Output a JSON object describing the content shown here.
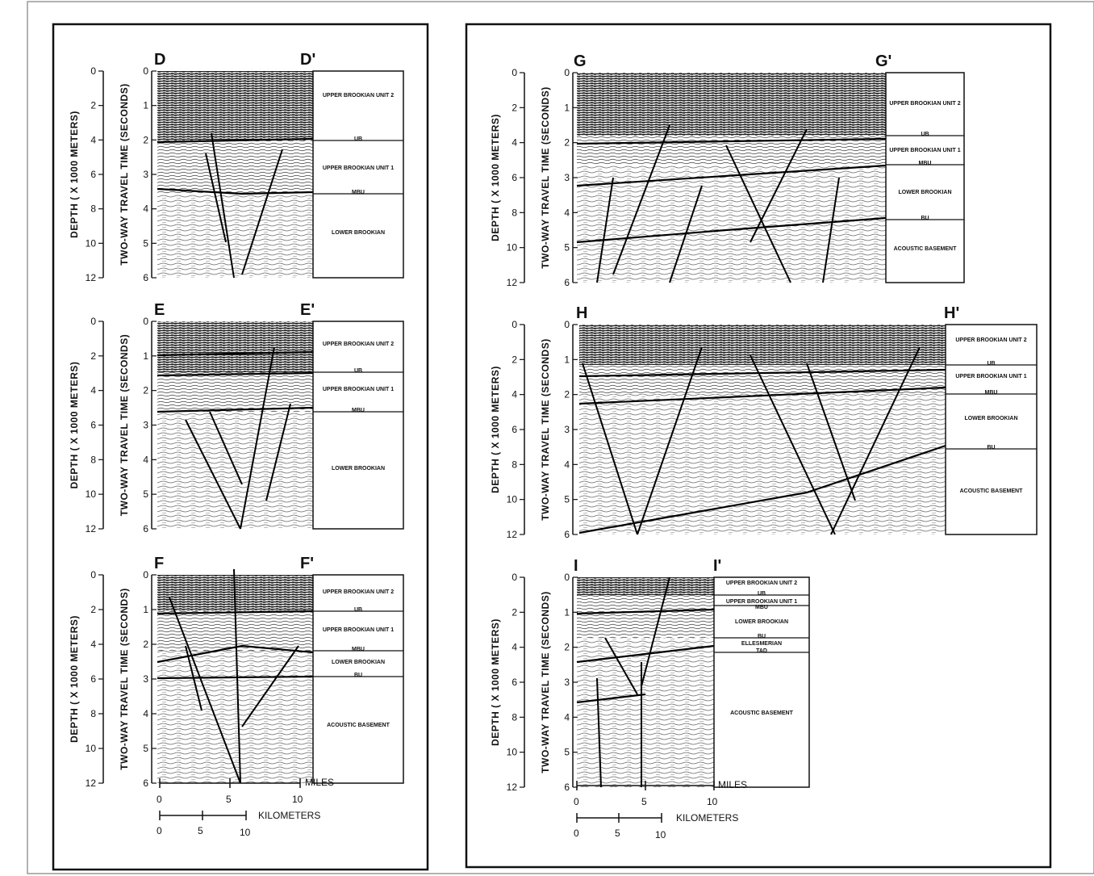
{
  "axis_labels": {
    "depth": "DEPTH ( X 1000 METERS)",
    "time": "TWO-WAY TRAVEL TIME (SECONDS)"
  },
  "depth_ticks": [
    "0",
    "2",
    "4",
    "6",
    "8",
    "10",
    "12"
  ],
  "time_ticks": [
    "0",
    "1",
    "2",
    "3",
    "4",
    "5",
    "6"
  ],
  "panels": [
    {
      "id": "D",
      "left": "D",
      "right": "D'",
      "units": [
        "UPPER BROOKIAN UNIT 2",
        "UB",
        "UPPER BROOKIAN UNIT 1",
        "MBU",
        "LOWER BROOKIAN"
      ]
    },
    {
      "id": "E",
      "left": "E",
      "right": "E'",
      "units": [
        "UPPER BROOKIAN UNIT 2",
        "UB",
        "UPPER BROOKIAN UNIT 1",
        "MBU",
        "LOWER BROOKIAN"
      ]
    },
    {
      "id": "F",
      "left": "F",
      "right": "F'",
      "units": [
        "UPPER BROOKIAN UNIT 2",
        "UB",
        "UPPER BROOKIAN UNIT 1",
        "MBU",
        "LOWER BROOKIAN",
        "BU",
        "ACOUSTIC BASEMENT"
      ]
    },
    {
      "id": "G",
      "left": "G",
      "right": "G'",
      "units": [
        "UPPER BROOKIAN UNIT 2",
        "UB",
        "UPPER BROOKIAN UNIT 1",
        "MBU",
        "LOWER BROOKIAN",
        "BU",
        "ACOUSTIC BASEMENT"
      ]
    },
    {
      "id": "H",
      "left": "H",
      "right": "H'",
      "units": [
        "UPPER BROOKIAN UNIT 2",
        "UB",
        "UPPER BROOKIAN UNIT 1",
        "MBU",
        "LOWER BROOKIAN",
        "BU",
        "ACOUSTIC BASEMENT"
      ]
    },
    {
      "id": "I",
      "left": "I",
      "right": "I'",
      "units": [
        "UPPER BROOKIAN UNIT 2",
        "UB",
        "UPPER BROOKIAN UNIT 1",
        "MBU",
        "LOWER BROOKIAN",
        "BU",
        "ELLESMERIAN",
        "TAD",
        "ACOUSTIC BASEMENT"
      ]
    }
  ],
  "scale_bar": {
    "miles_label": "MILES",
    "km_label": "KILOMETERS",
    "miles_ticks": [
      "0",
      "5",
      "10"
    ],
    "km_ticks": [
      "0",
      "5",
      "10"
    ]
  }
}
